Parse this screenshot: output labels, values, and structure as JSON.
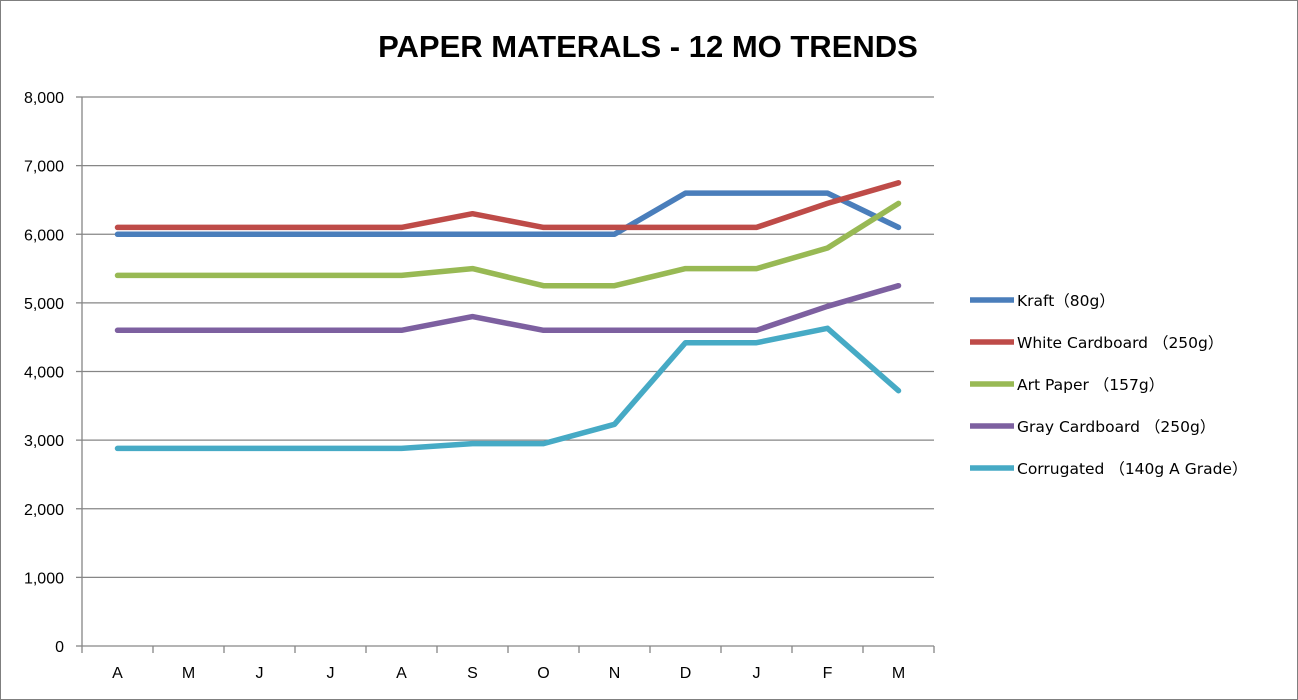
{
  "chart_data": {
    "type": "line",
    "title": "PAPER MATERALS - 12 MO TRENDS",
    "xlabel": "",
    "ylabel": "",
    "categories": [
      "A",
      "M",
      "J",
      "J",
      "A",
      "S",
      "O",
      "N",
      "D",
      "J",
      "F",
      "M"
    ],
    "ylim": [
      0,
      8000
    ],
    "yticks": [
      0,
      1000,
      2000,
      3000,
      4000,
      5000,
      6000,
      7000,
      8000
    ],
    "ytick_labels": [
      "0",
      "1,000",
      "2,000",
      "3,000",
      "4,000",
      "5,000",
      "6,000",
      "7,000",
      "8,000"
    ],
    "grid": true,
    "legend_position": "right",
    "series": [
      {
        "name": "Kraft（80g）",
        "color": "#4a7ebb",
        "values": [
          6000,
          6000,
          6000,
          6000,
          6000,
          6000,
          6000,
          6000,
          6600,
          6600,
          6600,
          6100
        ]
      },
      {
        "name": "White Cardboard （250g）",
        "color": "#be4b48",
        "values": [
          6100,
          6100,
          6100,
          6100,
          6100,
          6300,
          6100,
          6100,
          6100,
          6100,
          6450,
          6750
        ]
      },
      {
        "name": "Art Paper （157g）",
        "color": "#98b954",
        "values": [
          5400,
          5400,
          5400,
          5400,
          5400,
          5500,
          5250,
          5250,
          5500,
          5500,
          5800,
          6450
        ]
      },
      {
        "name": "Gray Cardboard （250g）",
        "color": "#7d60a0",
        "values": [
          4600,
          4600,
          4600,
          4600,
          4600,
          4800,
          4600,
          4600,
          4600,
          4600,
          4950,
          5250
        ]
      },
      {
        "name": "Corrugated （140g A Grade）",
        "color": "#46aac5",
        "values": [
          2880,
          2880,
          2880,
          2880,
          2880,
          2950,
          2950,
          3230,
          4420,
          4420,
          4630,
          3720
        ]
      }
    ]
  }
}
